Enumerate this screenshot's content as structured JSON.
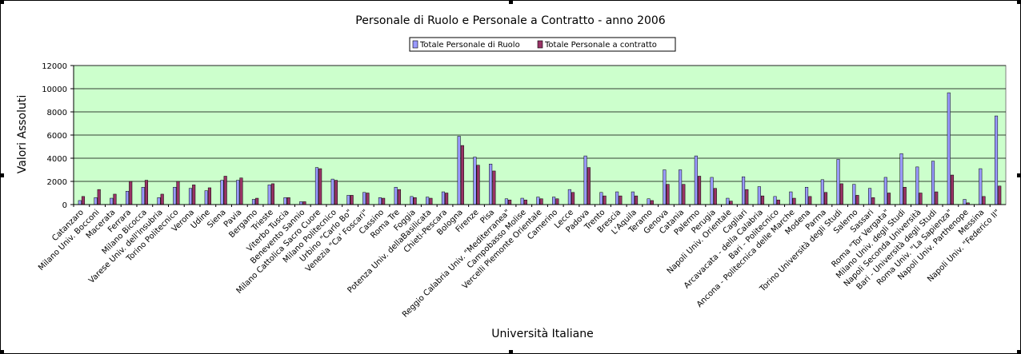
{
  "chart_data": {
    "type": "bar",
    "title": "Personale di Ruolo e Personale a Contratto - anno 2006",
    "xlabel": "Università Italiane",
    "ylabel": "Valori Assoluti",
    "ylim": [
      0,
      12000
    ],
    "yticks": [
      0,
      2000,
      4000,
      6000,
      8000,
      10000,
      12000
    ],
    "grid": true,
    "legend_position": "top",
    "plot_background": "#ccffcc",
    "categories": [
      "Catanzaro",
      "Milano Univ. Bocconi",
      "Macerata",
      "Ferrara",
      "Milano Bicocca",
      "Varese Univ. dell'Insubria",
      "Torino Politecnico",
      "Verona",
      "Udine",
      "Siena",
      "Pavia",
      "Bergamo",
      "Trieste",
      "Viterbo Tuscia",
      "Benevento Sannio",
      "Milano Cattolica Sacro Cuore",
      "Milano Politecnico",
      "Urbino \"Carlo Bo\"",
      "Venezia \"Ca' Foscari\"",
      "Cassino",
      "Roma Tre",
      "Foggia",
      "Potenza Univ. dellaBasilicata",
      "Chieti-Pescara",
      "Bologna",
      "Firenze",
      "Pisa",
      "Reggio Calabria Univ. \"Mediterranea\"",
      "Campobasso Molise",
      "Vercelli Piemonte Orientale",
      "Camerino",
      "Lecce",
      "Padova",
      "Trento",
      "Brescia",
      "L'Aquila",
      "Teramo",
      "Genova",
      "Catania",
      "Palermo",
      "Perugia",
      "Napoli Univ. Orientale",
      "Cagliari",
      "Arcavacata - della Calabria",
      "Bari - Politecnico",
      "Ancona - Politecnica delle Marche",
      "Modena",
      "Parma",
      "Torino Università degli Studi",
      "Salerno",
      "Sassari",
      "Roma \"Tor Vergata\"",
      "Milano Univ. degli Studi",
      "Napoli Seconda Università",
      "Bari - Università degli Studi",
      "Roma Univ. \"La Sapienza\"",
      "Napoli Univ. Parthenope",
      "Messina",
      "Napoli Univ. \"Federico II\""
    ],
    "series": [
      {
        "name": "Totale Personale di Ruolo",
        "color": "#9999ff",
        "values": [
          350,
          600,
          550,
          1150,
          1500,
          600,
          1500,
          1400,
          1200,
          2100,
          2100,
          450,
          1700,
          600,
          250,
          3200,
          2200,
          800,
          1050,
          600,
          1500,
          700,
          650,
          1100,
          5900,
          4100,
          3500,
          500,
          550,
          650,
          650,
          1300,
          4200,
          1050,
          1100,
          1100,
          500,
          3000,
          3000,
          4200,
          2350,
          550,
          2400,
          1550,
          700,
          1100,
          1500,
          2150,
          3900,
          1750,
          1400,
          2350,
          4400,
          3250,
          3750,
          9650,
          450,
          3100,
          7650
        ]
      },
      {
        "name": "Totale Personale a contratto",
        "color": "#993366",
        "values": [
          700,
          1300,
          900,
          2000,
          2100,
          900,
          2000,
          1700,
          1450,
          2450,
          2300,
          550,
          1800,
          600,
          250,
          3100,
          2100,
          800,
          1000,
          550,
          1300,
          600,
          550,
          1000,
          5100,
          3400,
          2900,
          400,
          400,
          500,
          500,
          1050,
          3200,
          750,
          750,
          750,
          350,
          1750,
          1750,
          2450,
          1400,
          300,
          1300,
          750,
          400,
          550,
          700,
          1050,
          1800,
          800,
          600,
          1000,
          1500,
          1000,
          1100,
          2550,
          150,
          700,
          1600
        ]
      }
    ]
  }
}
